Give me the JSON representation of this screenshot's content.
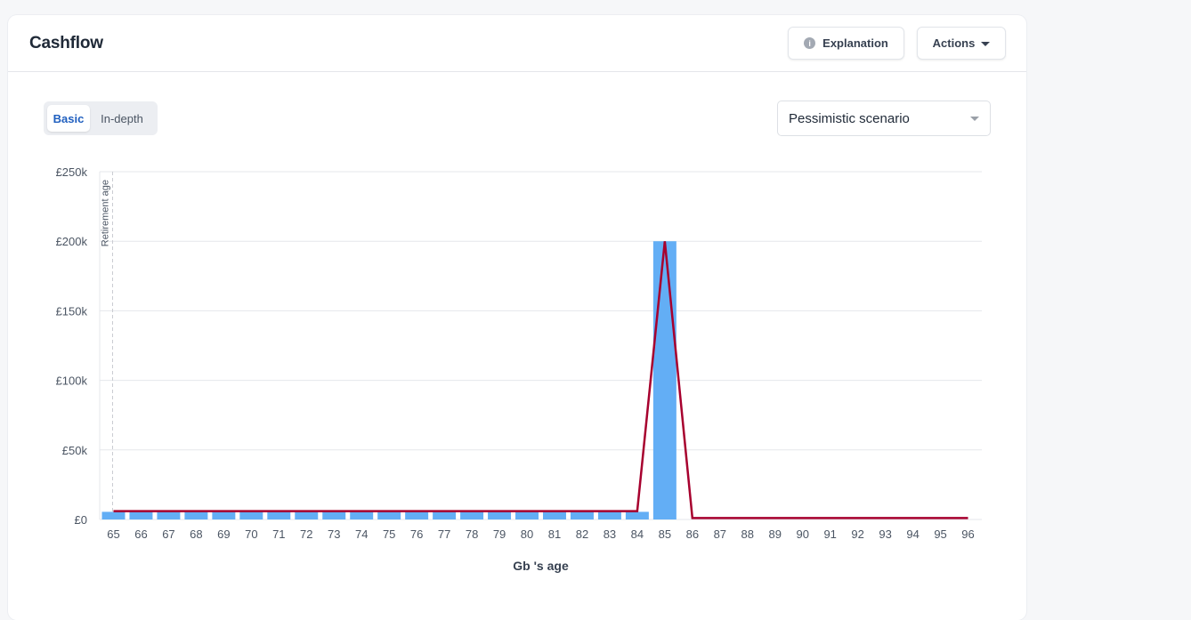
{
  "header": {
    "title": "Cashflow",
    "explanation_label": "Explanation",
    "explanation_icon": "info-icon",
    "actions_label": "Actions",
    "actions_icon": "caret-down-icon"
  },
  "view_toggle": {
    "options": [
      "Basic",
      "In-depth"
    ],
    "selected": "Basic"
  },
  "scenario_select": {
    "value": "Pessimistic scenario"
  },
  "colors": {
    "bar": "#63aef5",
    "line": "#a7002e",
    "grid": "#e5e7eb",
    "retirement_marker": "#c9ccd2"
  },
  "chart_data": {
    "type": "bar",
    "categories": [
      "65",
      "66",
      "67",
      "68",
      "69",
      "70",
      "71",
      "72",
      "73",
      "74",
      "75",
      "76",
      "77",
      "78",
      "79",
      "80",
      "81",
      "82",
      "83",
      "84",
      "85",
      "86",
      "87",
      "88",
      "89",
      "90",
      "91",
      "92",
      "93",
      "94",
      "95",
      "96"
    ],
    "series": [
      {
        "type": "bar",
        "values": [
          5500,
          5500,
          5500,
          5500,
          5500,
          5500,
          5500,
          5500,
          5500,
          5500,
          5500,
          5500,
          5500,
          5500,
          5500,
          5500,
          5500,
          5500,
          5500,
          5500,
          200000,
          0,
          0,
          0,
          0,
          0,
          0,
          0,
          0,
          0,
          0,
          0
        ]
      },
      {
        "type": "line",
        "values": [
          6000,
          6000,
          6000,
          6000,
          6000,
          6000,
          6000,
          6000,
          6000,
          6000,
          6000,
          6000,
          6000,
          6000,
          6000,
          6000,
          6000,
          6000,
          6000,
          6000,
          200000,
          1000,
          1000,
          1000,
          1000,
          1000,
          1000,
          1000,
          1000,
          1000,
          1000,
          1000
        ]
      }
    ],
    "ylim": [
      0,
      250000
    ],
    "yticks": [
      0,
      50000,
      100000,
      150000,
      200000,
      250000
    ],
    "ytick_labels": [
      "£0",
      "£50k",
      "£100k",
      "£150k",
      "£200k",
      "£250k"
    ],
    "xlabel": "Gb 's age",
    "ylabel": "",
    "grid": true,
    "annotation": {
      "label": "Retirement age",
      "at": "65"
    }
  }
}
